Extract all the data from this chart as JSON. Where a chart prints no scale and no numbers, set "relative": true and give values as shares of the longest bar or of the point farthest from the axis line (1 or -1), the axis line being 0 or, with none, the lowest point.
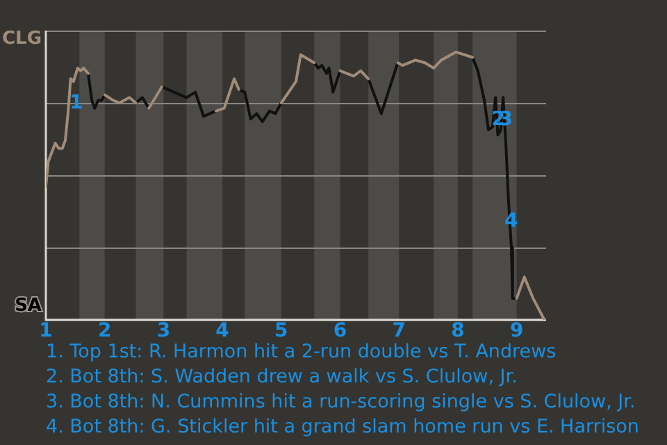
{
  "chart_data": {
    "type": "line",
    "relative": true,
    "x": [
      1.0,
      1.04,
      1.16,
      1.22,
      1.28,
      1.33,
      1.38,
      1.42,
      1.47,
      1.54,
      1.59,
      1.64,
      1.72,
      1.78,
      1.83,
      1.89,
      1.95,
      2.0,
      2.14,
      2.25,
      2.42,
      2.53,
      2.64,
      2.75,
      2.97,
      3.39,
      3.54,
      3.68,
      3.89,
      4.03,
      4.2,
      4.28,
      4.38,
      4.48,
      4.58,
      4.68,
      4.8,
      4.9,
      5.0,
      5.25,
      5.33,
      5.56,
      5.63,
      5.69,
      5.77,
      5.81,
      5.88,
      6.0,
      6.23,
      6.35,
      6.48,
      6.7,
      6.98,
      7.06,
      7.28,
      7.44,
      7.59,
      7.72,
      7.97,
      8.25,
      8.34,
      8.45,
      8.52,
      8.59,
      8.64,
      8.68,
      8.73,
      8.77,
      8.82,
      8.86,
      8.89,
      8.91,
      8.93,
      9.0,
      9.13,
      9.28,
      9.47
    ],
    "series": [
      {
        "color": "#a08c78",
        "values": [
          0.5,
          0.59,
          0.66,
          0.64,
          0.64,
          0.67,
          0.78,
          0.9,
          0.89,
          0.94,
          0.93,
          0.94,
          0.92,
          null,
          null,
          null,
          null,
          0.84,
          0.82,
          0.81,
          0.83,
          0.81,
          null,
          0.79,
          0.87,
          null,
          null,
          null,
          0.78,
          0.79,
          0.9,
          0.86,
          null,
          null,
          null,
          null,
          null,
          null,
          0.81,
          0.89,
          0.99,
          0.96,
          null,
          null,
          null,
          null,
          null,
          0.93,
          0.91,
          0.93,
          0.9,
          null,
          0.96,
          0.95,
          0.97,
          0.96,
          0.94,
          0.97,
          1,
          0.98,
          null,
          null,
          null,
          null,
          null,
          null,
          null,
          null,
          null,
          null,
          null,
          null,
          null,
          0.08,
          0.16,
          0.08,
          0
        ]
      },
      {
        "color": "#111111",
        "values": [
          null,
          null,
          null,
          null,
          null,
          null,
          null,
          null,
          null,
          null,
          null,
          null,
          0.92,
          0.82,
          0.79,
          0.82,
          0.82,
          0.84,
          null,
          null,
          null,
          0.81,
          0.83,
          0.79,
          0.87,
          0.83,
          0.85,
          0.76,
          0.78,
          null,
          null,
          0.86,
          0.85,
          0.75,
          0.77,
          0.74,
          0.78,
          0.77,
          0.81,
          null,
          null,
          0.96,
          0.94,
          0.95,
          0.92,
          0.94,
          0.85,
          0.93,
          null,
          null,
          0.9,
          0.77,
          0.96,
          null,
          null,
          null,
          null,
          null,
          null,
          0.98,
          0.93,
          0.82,
          0.71,
          0.72,
          0.83,
          0.69,
          0.71,
          0.83,
          0.64,
          0.45,
          0.34,
          0.27,
          0.08,
          0.08,
          null,
          null,
          null
        ]
      }
    ],
    "xlim": [
      1,
      9.5
    ],
    "xticks": [
      1,
      2,
      3,
      4,
      5,
      6,
      7,
      8,
      9
    ],
    "grid": "y",
    "marker": "none",
    "line_style": "solid",
    "bands": [
      {
        "axis": "x",
        "from": 1.57,
        "to": 2,
        "color": "#4d4b48"
      },
      {
        "axis": "x",
        "from": 2.53,
        "to": 3,
        "color": "#4d4b48"
      },
      {
        "axis": "x",
        "from": 3.39,
        "to": 4,
        "color": "#4d4b48"
      },
      {
        "axis": "x",
        "from": 4.38,
        "to": 5,
        "color": "#4d4b48"
      },
      {
        "axis": "x",
        "from": 5.56,
        "to": 6,
        "color": "#4d4b48"
      },
      {
        "axis": "x",
        "from": 6.48,
        "to": 7,
        "color": "#4d4b48"
      },
      {
        "axis": "x",
        "from": 7.59,
        "to": 8,
        "color": "#4d4b48"
      },
      {
        "axis": "x",
        "from": 8.25,
        "to": 9,
        "color": "#4d4b48"
      }
    ],
    "annotations": [
      "CLG",
      "SA",
      {
        "text": "1",
        "x": 1.47,
        "y": 0.89
      },
      {
        "text": "2",
        "x": 8.64,
        "y": 0.83
      },
      {
        "text": "3",
        "x": 8.77,
        "y": 0.83
      },
      {
        "text": "4",
        "x": 8.86,
        "y": 0.45
      },
      "1. Top 1st: R. Harmon hit a 2-run double vs T. Andrews",
      "2. Bot 8th: S. Wadden drew a walk vs S. Clulow, Jr.",
      "3. Bot 8th: N. Cummins hit a run-scoring single vs S. Clulow, Jr.",
      "4. Bot 8th: G. Stickler hit a grand slam home run vs E. Harrison"
    ]
  }
}
